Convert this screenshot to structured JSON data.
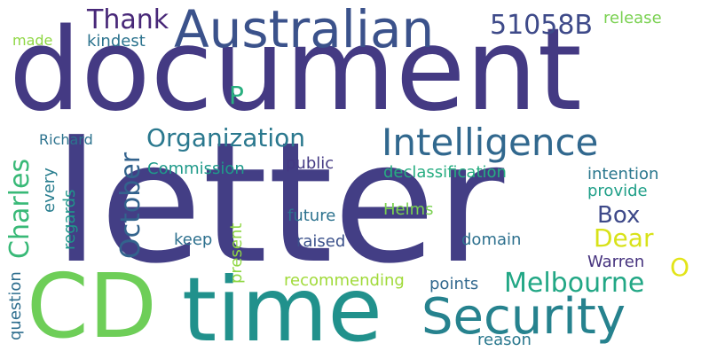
{
  "words": [
    {
      "text": "document",
      "color": "#443a83",
      "orientation": "horizontal"
    },
    {
      "text": "letter",
      "color": "#433e85",
      "orientation": "horizontal"
    },
    {
      "text": "CD",
      "color": "#6ece58",
      "orientation": "horizontal"
    },
    {
      "text": "time",
      "color": "#21918c",
      "orientation": "horizontal"
    },
    {
      "text": "Australian",
      "color": "#3b528b",
      "orientation": "horizontal"
    },
    {
      "text": "Security",
      "color": "#26828e",
      "orientation": "horizontal"
    },
    {
      "text": "Intelligence",
      "color": "#31688e",
      "orientation": "horizontal"
    },
    {
      "text": "Organization",
      "color": "#2a788e",
      "orientation": "horizontal"
    },
    {
      "text": "Melbourne",
      "color": "#22a785",
      "orientation": "horizontal"
    },
    {
      "text": "Thank",
      "color": "#482878",
      "orientation": "horizontal"
    },
    {
      "text": "51058B",
      "color": "#3e4a89",
      "orientation": "horizontal"
    },
    {
      "text": "Charles",
      "color": "#38b977",
      "orientation": "vertical"
    },
    {
      "text": "October",
      "color": "#33638d",
      "orientation": "vertical"
    },
    {
      "text": "Box",
      "color": "#3e4989",
      "orientation": "horizontal"
    },
    {
      "text": "Dear",
      "color": "#d8e219",
      "orientation": "horizontal"
    },
    {
      "text": "O",
      "color": "#e2e418",
      "orientation": "horizontal"
    },
    {
      "text": "P",
      "color": "#29af7f",
      "orientation": "horizontal"
    },
    {
      "text": "release",
      "color": "#7ad151",
      "orientation": "horizontal"
    },
    {
      "text": "kindest",
      "color": "#2c738e",
      "orientation": "horizontal"
    },
    {
      "text": "made",
      "color": "#8fd744",
      "orientation": "horizontal"
    },
    {
      "text": "Richard",
      "color": "#2c728e",
      "orientation": "horizontal"
    },
    {
      "text": "Commission",
      "color": "#1f9a8a",
      "orientation": "horizontal"
    },
    {
      "text": "public",
      "color": "#443983",
      "orientation": "horizontal"
    },
    {
      "text": "declassification",
      "color": "#27ad81",
      "orientation": "horizontal"
    },
    {
      "text": "intention",
      "color": "#2a778e",
      "orientation": "horizontal"
    },
    {
      "text": "provide",
      "color": "#1f9f88",
      "orientation": "horizontal"
    },
    {
      "text": "every",
      "color": "#287d8e",
      "orientation": "vertical"
    },
    {
      "text": "regards",
      "color": "#1f978b",
      "orientation": "vertical"
    },
    {
      "text": "present",
      "color": "#8fd744",
      "orientation": "vertical"
    },
    {
      "text": "future",
      "color": "#2c728e",
      "orientation": "horizontal"
    },
    {
      "text": "Helms",
      "color": "#7ad151",
      "orientation": "horizontal"
    },
    {
      "text": "keep",
      "color": "#2d708e",
      "orientation": "horizontal"
    },
    {
      "text": "raised",
      "color": "#3b518b",
      "orientation": "horizontal"
    },
    {
      "text": "domain",
      "color": "#2d708e",
      "orientation": "horizontal"
    },
    {
      "text": "Warren",
      "color": "#46337e",
      "orientation": "horizontal"
    },
    {
      "text": "recommending",
      "color": "#a0da39",
      "orientation": "horizontal"
    },
    {
      "text": "points",
      "color": "#31688e",
      "orientation": "horizontal"
    },
    {
      "text": "question",
      "color": "#2e6e8e",
      "orientation": "vertical"
    },
    {
      "text": "reason",
      "color": "#2a788e",
      "orientation": "horizontal"
    }
  ]
}
